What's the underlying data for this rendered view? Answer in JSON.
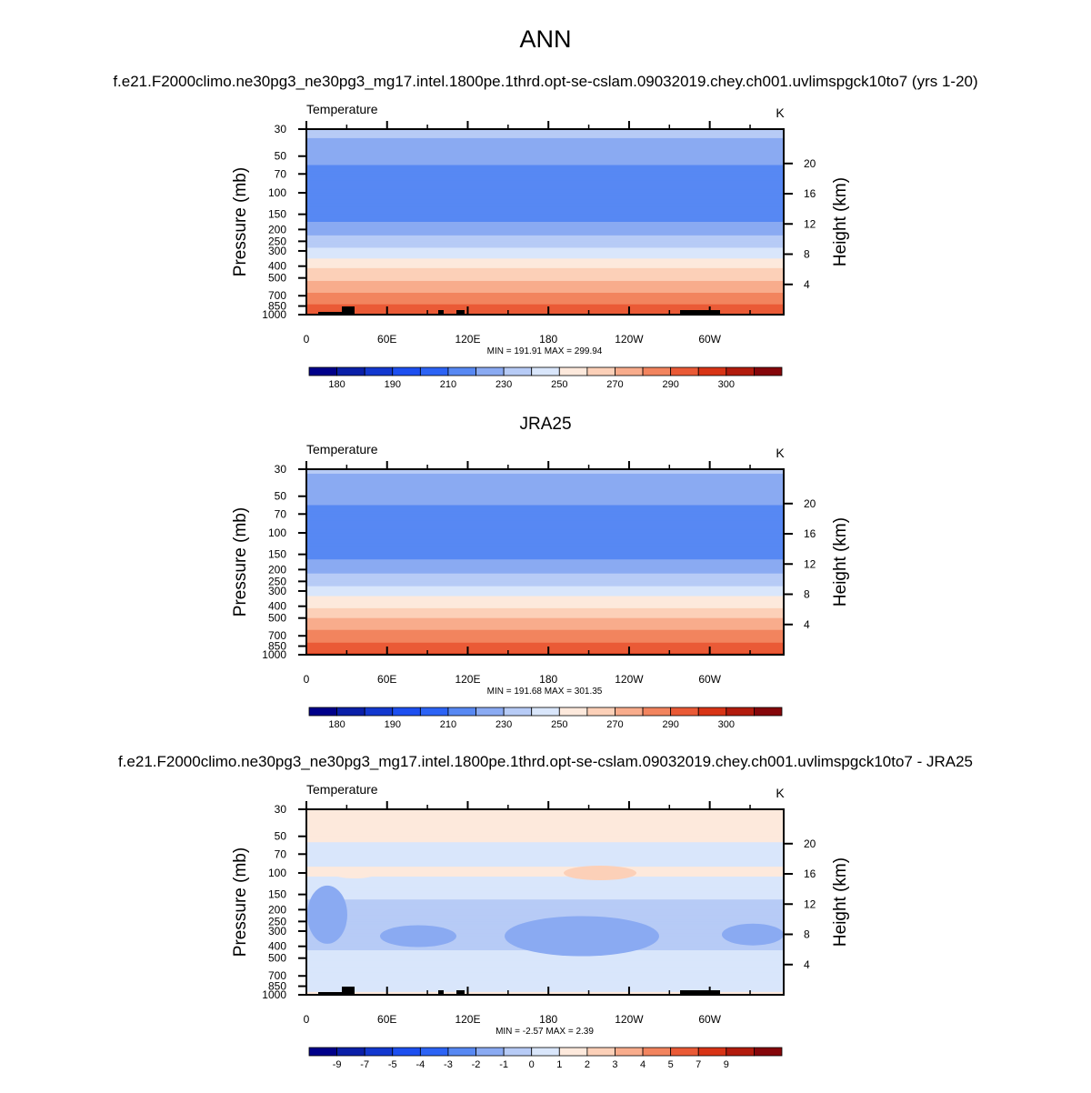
{
  "figure": {
    "season_title": "ANN",
    "colors": {
      "temp_levels": [
        "#00008a",
        "#0a1fa8",
        "#1338cf",
        "#1d4ff0",
        "#2c63f5",
        "#5788f3",
        "#8aaaf2",
        "#b7cbf6",
        "#d9e6fb",
        "#fde9dc",
        "#fcd0b8",
        "#f8ac8c",
        "#f2845e",
        "#ea5a36",
        "#d83416",
        "#b21b0d",
        "#85060a"
      ],
      "diff_levels": [
        "#00008a",
        "#0a1fa8",
        "#1338cf",
        "#1d4ff0",
        "#2c63f5",
        "#5788f3",
        "#8aaaf2",
        "#b7cbf6",
        "#d9e6fb",
        "#fde9dc",
        "#fcd0b8",
        "#f8ac8c",
        "#f2845e",
        "#ea5a36",
        "#d83416",
        "#b21b0d",
        "#85060a"
      ]
    }
  },
  "chart_data": [
    {
      "type": "heatmap",
      "title": "f.e21.F2000climo.ne30pg3_ne30pg3_mg17.intel.1800pe.1thrd.opt-se-cslam.09032019.chey.ch001.uvlimspgck10to7 (yrs 1-20)",
      "variable_label": "Temperature",
      "units": "K",
      "xlabel": "",
      "ylabel": "Pressure (mb)",
      "y2label": "Height (km)",
      "x_ticks": [
        "0",
        "60E",
        "120E",
        "180",
        "120W",
        "60W"
      ],
      "y_ticks": [
        "30",
        "50",
        "70",
        "100",
        "150",
        "200",
        "250",
        "300",
        "400",
        "500",
        "700",
        "850",
        "1000"
      ],
      "y2_ticks": [
        "4",
        "8",
        "12",
        "16",
        "20"
      ],
      "ylim": [
        1000,
        30
      ],
      "stats": "MIN = 191.91  MAX = 299.94",
      "colorbar_labels": [
        "180",
        "190",
        "210",
        "230",
        "250",
        "270",
        "290",
        "300"
      ],
      "pressure_levels": [
        30,
        50,
        70,
        100,
        150,
        200,
        250,
        300,
        400,
        500,
        700,
        850,
        1000
      ],
      "approx_temperature": [
        222,
        214,
        207,
        202,
        206,
        215,
        225,
        233,
        248,
        258,
        273,
        282,
        290
      ]
    },
    {
      "type": "heatmap",
      "title": "JRA25",
      "variable_label": "Temperature",
      "units": "K",
      "xlabel": "",
      "ylabel": "Pressure (mb)",
      "y2label": "Height (km)",
      "x_ticks": [
        "0",
        "60E",
        "120E",
        "180",
        "120W",
        "60W"
      ],
      "y_ticks": [
        "30",
        "50",
        "70",
        "100",
        "150",
        "200",
        "250",
        "300",
        "400",
        "500",
        "700",
        "850",
        "1000"
      ],
      "y2_ticks": [
        "4",
        "8",
        "12",
        "16",
        "20"
      ],
      "ylim": [
        1000,
        30
      ],
      "stats": "MIN = 191.68  MAX = 301.35",
      "colorbar_labels": [
        "180",
        "190",
        "210",
        "230",
        "250",
        "270",
        "290",
        "300"
      ],
      "pressure_levels": [
        30,
        50,
        70,
        100,
        150,
        200,
        250,
        300,
        400,
        500,
        700,
        850,
        1000
      ],
      "approx_temperature": [
        221,
        214,
        207,
        202,
        206,
        216,
        226,
        234,
        249,
        259,
        274,
        283,
        291
      ]
    },
    {
      "type": "heatmap",
      "title": "f.e21.F2000climo.ne30pg3_ne30pg3_mg17.intel.1800pe.1thrd.opt-se-cslam.09032019.chey.ch001.uvlimspgck10to7 - JRA25",
      "variable_label": "Temperature",
      "units": "K",
      "xlabel": "",
      "ylabel": "Pressure (mb)",
      "y2label": "Height (km)",
      "x_ticks": [
        "0",
        "60E",
        "120E",
        "180",
        "120W",
        "60W"
      ],
      "y_ticks": [
        "30",
        "50",
        "70",
        "100",
        "150",
        "200",
        "250",
        "300",
        "400",
        "500",
        "700",
        "850",
        "1000"
      ],
      "y2_ticks": [
        "4",
        "8",
        "12",
        "16",
        "20"
      ],
      "ylim": [
        1000,
        30
      ],
      "stats": "MIN =  -2.57  MAX =   2.39",
      "colorbar_labels": [
        "-9",
        "-7",
        "-5",
        "-4",
        "-3",
        "-2",
        "-1",
        "0",
        "1",
        "2",
        "3",
        "4",
        "5",
        "7",
        "9"
      ],
      "pressure_levels": [
        30,
        50,
        70,
        100,
        150,
        200,
        250,
        300,
        400,
        500,
        700,
        850,
        1000
      ],
      "approx_difference": [
        0.5,
        0.2,
        -0.3,
        0.2,
        -0.8,
        -1.3,
        -1.6,
        -1.8,
        -1.2,
        -0.7,
        -0.3,
        -0.8,
        0.4
      ]
    }
  ]
}
